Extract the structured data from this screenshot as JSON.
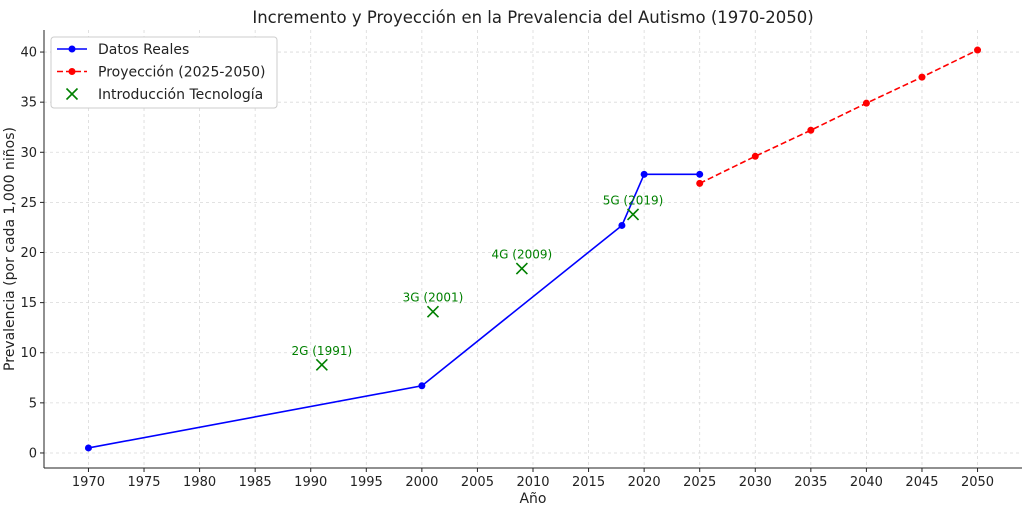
{
  "chart_data": {
    "type": "line",
    "title": "Incremento y Proyección en la Prevalencia del Autismo (1970-2050)",
    "xlabel": "Año",
    "ylabel": "Prevalencia (por cada 1,000 niños)",
    "xlim": [
      1966,
      2054
    ],
    "ylim": [
      -1.5,
      42.2
    ],
    "x_ticks": [
      1970,
      1975,
      1980,
      1985,
      1990,
      1995,
      2000,
      2005,
      2010,
      2015,
      2020,
      2025,
      2030,
      2035,
      2040,
      2045,
      2050
    ],
    "y_ticks": [
      0,
      5,
      10,
      15,
      20,
      25,
      30,
      35,
      40
    ],
    "grid": true,
    "legend_position": "upper-left",
    "series": [
      {
        "name": "Datos Reales",
        "style": "solid-line-circle-markers",
        "color": "#0000ff",
        "x": [
          1970,
          2000,
          2018,
          2020,
          2025
        ],
        "y": [
          0.5,
          6.7,
          22.7,
          27.8,
          27.8
        ]
      },
      {
        "name": "Proyección (2025-2050)",
        "style": "dashed-line-circle-markers",
        "color": "#ff0000",
        "x": [
          2025,
          2030,
          2035,
          2040,
          2045,
          2050
        ],
        "y": [
          26.9,
          29.6,
          32.2,
          34.9,
          37.5,
          40.2
        ]
      },
      {
        "name": "Introducción Tecnología",
        "style": "x-markers",
        "color": "#008000",
        "x": [
          1991,
          2001,
          2009,
          2019
        ],
        "y": [
          8.8,
          14.1,
          18.4,
          23.8
        ],
        "labels": [
          "2G (1991)",
          "3G (2001)",
          "4G (2009)",
          "5G (2019)"
        ]
      }
    ]
  }
}
